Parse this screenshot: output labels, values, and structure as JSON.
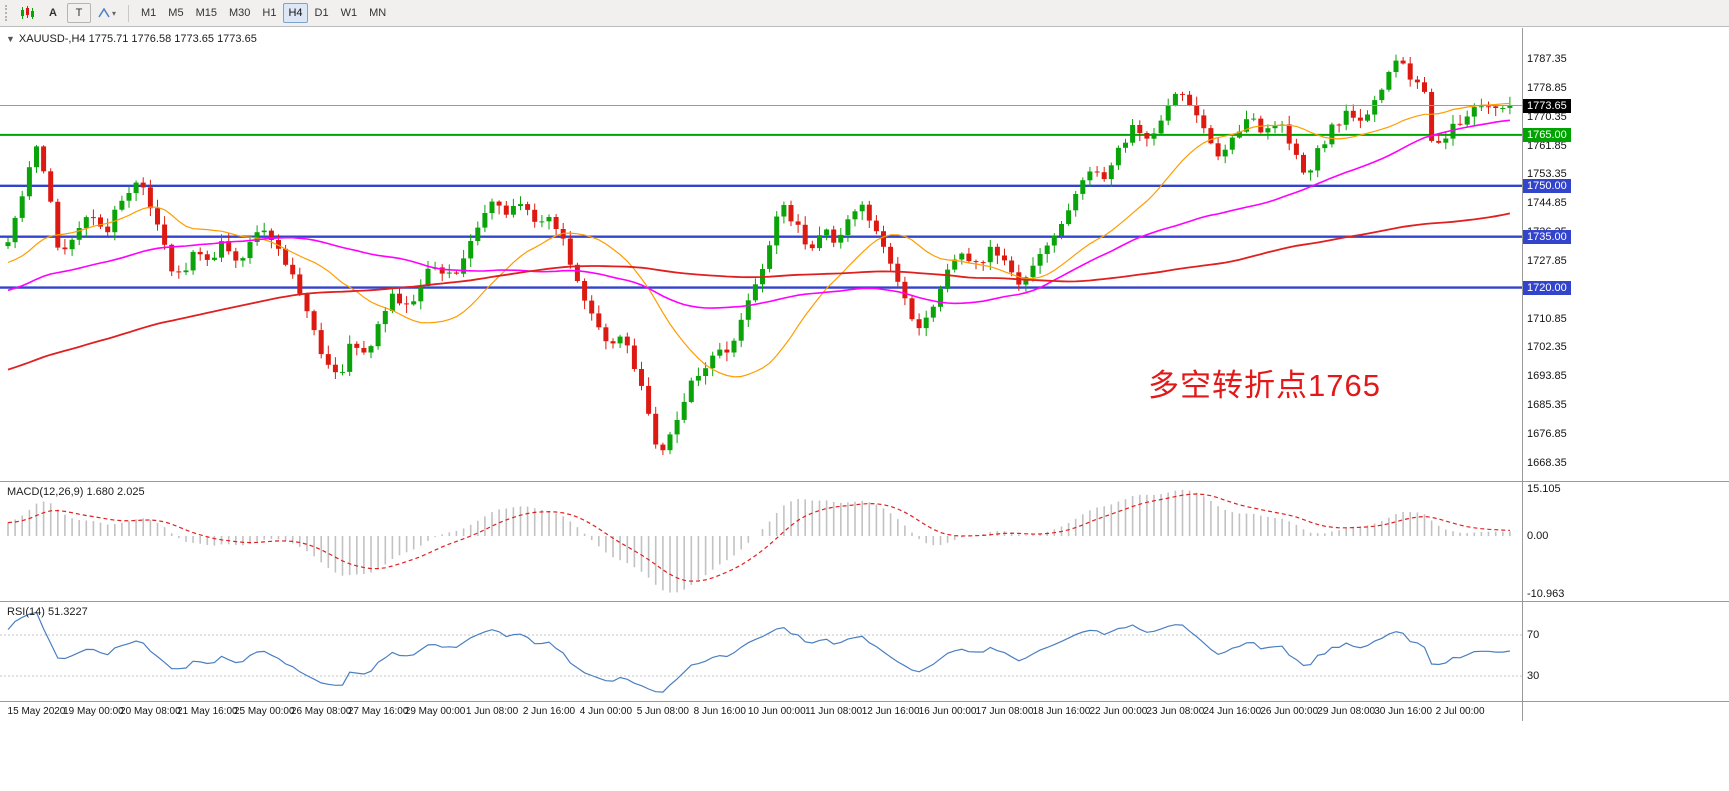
{
  "toolbar": {
    "text_tool": "A",
    "box_tool": "T",
    "timeframes": [
      "M1",
      "M5",
      "M15",
      "M30",
      "H1",
      "H4",
      "D1",
      "W1",
      "MN"
    ],
    "active_timeframe": "H4"
  },
  "chart": {
    "collapse_glyph": "▼",
    "title": "XAUUSD-,H4",
    "ohlc_text": "1775.71 1776.58 1773.65 1773.65",
    "annotation": "多空转折点1765"
  },
  "macd_panel": {
    "label": "MACD(12,26,9) 1.680 2.025",
    "axis_labels": [
      "15.105",
      "0.00",
      "-10.963"
    ]
  },
  "rsi_panel": {
    "label": "RSI(14) 51.3227",
    "level_labels": [
      "70",
      "30"
    ]
  },
  "chart_data": {
    "type": "candlestick",
    "symbol": "XAUUSD-",
    "timeframe": "H4",
    "last_price": 1773.65,
    "last_price_label": "1773.65",
    "ohlc_display": [
      1775.71,
      1776.58,
      1773.65,
      1773.65
    ],
    "price_axis_labels": [
      "1787.35",
      "1778.85",
      "1770.35",
      "1761.85",
      "1753.35",
      "1744.85",
      "1736.35",
      "1727.85",
      "1719.35",
      "1710.85",
      "1702.35",
      "1693.85",
      "1685.35",
      "1676.85",
      "1668.35"
    ],
    "time_axis_labels": [
      "15 May 2020",
      "19 May 00:00",
      "20 May 08:00",
      "21 May 16:00",
      "25 May 00:00",
      "26 May 08:00",
      "27 May 16:00",
      "29 May 00:00",
      "1 Jun 08:00",
      "2 Jun 16:00",
      "4 Jun 00:00",
      "5 Jun 08:00",
      "8 Jun 16:00",
      "10 Jun 00:00",
      "11 Jun 08:00",
      "12 Jun 16:00",
      "16 Jun 00:00",
      "17 Jun 08:00",
      "18 Jun 16:00",
      "22 Jun 00:00",
      "23 Jun 08:00",
      "24 Jun 16:00",
      "26 Jun 00:00",
      "29 Jun 08:00",
      "30 Jun 16:00",
      "2 Jul 00:00"
    ],
    "horizontal_lines": [
      {
        "price": 1765.0,
        "label": "1765.00",
        "color": "#00a400",
        "width": 2
      },
      {
        "price": 1750.0,
        "label": "1750.00",
        "color": "#3344cc",
        "width": 2.4
      },
      {
        "price": 1735.0,
        "label": "1735.00",
        "color": "#3344cc",
        "width": 2.4
      },
      {
        "price": 1720.0,
        "label": "1720.00",
        "color": "#3344cc",
        "width": 2.4
      }
    ],
    "colors": {
      "up": "#0aa30a",
      "down": "#dd1a12",
      "macd_hist": "#c2c2c2",
      "macd_signal": "#e02020",
      "rsi": "#4a7fc1",
      "last_price_line": "#8f9bb0",
      "level_line": "#c4c4c4"
    },
    "moving_averages": [
      {
        "period": 20,
        "color": "#ff9c00",
        "width": 1.2
      },
      {
        "period": 55,
        "color": "#ff00ff",
        "width": 1.6
      },
      {
        "period": 130,
        "color": "#e02020",
        "width": 1.8
      }
    ],
    "indicators": {
      "macd": {
        "fast": 12,
        "slow": 26,
        "signal": 9,
        "values_display": [
          1.68,
          2.025
        ]
      },
      "rsi": {
        "period": 14,
        "value_display": 51.3227,
        "levels": [
          70,
          30
        ]
      }
    },
    "visible_bars": 212,
    "price_range_visible": [
      1663.0,
      1796.5
    ],
    "price_path": [
      [
        -140,
        1648
      ],
      [
        -120,
        1659
      ],
      [
        -100,
        1671
      ],
      [
        -80,
        1688
      ],
      [
        -60,
        1701
      ],
      [
        -40,
        1713
      ],
      [
        -20,
        1723
      ],
      [
        -10,
        1727
      ],
      [
        -2,
        1730
      ],
      [
        0,
        1731
      ],
      [
        2,
        1744
      ],
      [
        4,
        1757
      ],
      [
        5,
        1764
      ],
      [
        6,
        1750
      ],
      [
        8,
        1729
      ],
      [
        10,
        1736
      ],
      [
        12,
        1742
      ],
      [
        14,
        1735
      ],
      [
        16,
        1743
      ],
      [
        18,
        1749
      ],
      [
        19,
        1752
      ],
      [
        21,
        1743
      ],
      [
        23,
        1728
      ],
      [
        25,
        1722
      ],
      [
        27,
        1731
      ],
      [
        29,
        1726
      ],
      [
        31,
        1734
      ],
      [
        33,
        1728
      ],
      [
        35,
        1735
      ],
      [
        37,
        1737
      ],
      [
        39,
        1730
      ],
      [
        41,
        1721
      ],
      [
        43,
        1711
      ],
      [
        45,
        1697
      ],
      [
        47,
        1693
      ],
      [
        49,
        1705
      ],
      [
        51,
        1698
      ],
      [
        53,
        1712
      ],
      [
        55,
        1718
      ],
      [
        57,
        1713
      ],
      [
        59,
        1723
      ],
      [
        61,
        1727
      ],
      [
        63,
        1722
      ],
      [
        65,
        1731
      ],
      [
        67,
        1740
      ],
      [
        69,
        1745
      ],
      [
        71,
        1741
      ],
      [
        73,
        1746
      ],
      [
        75,
        1738
      ],
      [
        77,
        1742
      ],
      [
        79,
        1731
      ],
      [
        81,
        1720
      ],
      [
        83,
        1710
      ],
      [
        85,
        1703
      ],
      [
        87,
        1707
      ],
      [
        89,
        1695
      ],
      [
        91,
        1680
      ],
      [
        92,
        1671
      ],
      [
        94,
        1679
      ],
      [
        96,
        1690
      ],
      [
        98,
        1695
      ],
      [
        100,
        1703
      ],
      [
        102,
        1699
      ],
      [
        104,
        1713
      ],
      [
        106,
        1723
      ],
      [
        108,
        1736
      ],
      [
        109,
        1745
      ],
      [
        111,
        1740
      ],
      [
        113,
        1731
      ],
      [
        115,
        1738
      ],
      [
        117,
        1733
      ],
      [
        119,
        1741
      ],
      [
        121,
        1744
      ],
      [
        123,
        1734
      ],
      [
        125,
        1726
      ],
      [
        127,
        1713
      ],
      [
        129,
        1707
      ],
      [
        131,
        1717
      ],
      [
        133,
        1726
      ],
      [
        135,
        1731
      ],
      [
        137,
        1725
      ],
      [
        139,
        1732
      ],
      [
        141,
        1727
      ],
      [
        143,
        1721
      ],
      [
        145,
        1729
      ],
      [
        147,
        1734
      ],
      [
        149,
        1741
      ],
      [
        151,
        1750
      ],
      [
        153,
        1756
      ],
      [
        155,
        1752
      ],
      [
        157,
        1762
      ],
      [
        159,
        1768
      ],
      [
        161,
        1763
      ],
      [
        163,
        1771
      ],
      [
        165,
        1779
      ],
      [
        167,
        1773
      ],
      [
        169,
        1764
      ],
      [
        171,
        1758
      ],
      [
        173,
        1764
      ],
      [
        175,
        1770
      ],
      [
        177,
        1765
      ],
      [
        179,
        1770
      ],
      [
        181,
        1761
      ],
      [
        183,
        1752
      ],
      [
        185,
        1762
      ],
      [
        187,
        1768
      ],
      [
        189,
        1772
      ],
      [
        191,
        1769
      ],
      [
        193,
        1776
      ],
      [
        195,
        1786
      ],
      [
        196,
        1789
      ],
      [
        197,
        1785
      ],
      [
        198,
        1781
      ],
      [
        200,
        1775
      ],
      [
        201,
        1758
      ],
      [
        202,
        1764
      ],
      [
        204,
        1768
      ],
      [
        206,
        1772
      ],
      [
        208,
        1774
      ],
      [
        210,
        1772
      ],
      [
        212,
        1774
      ]
    ]
  }
}
